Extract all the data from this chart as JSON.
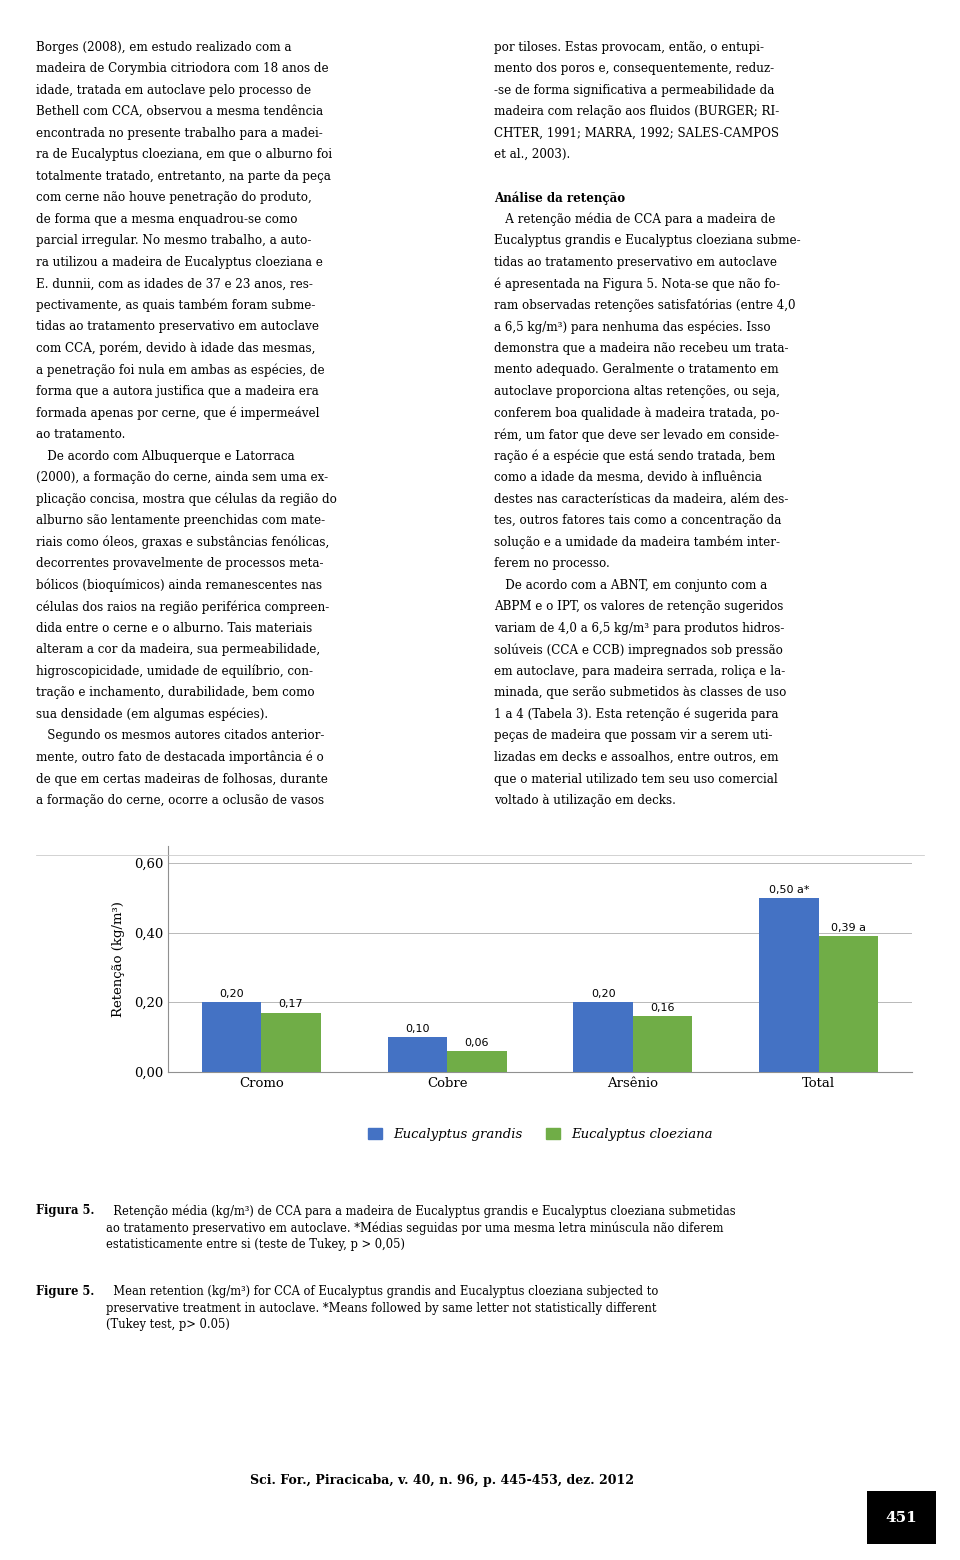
{
  "categories": [
    "Cromo",
    "Cobre",
    "Arsênio",
    "Total"
  ],
  "series": [
    {
      "name": "Eucalyptus grandis",
      "values": [
        0.2,
        0.1,
        0.2,
        0.5
      ],
      "labels": [
        "0,20",
        "0,10",
        "0,20",
        "0,50 a*"
      ],
      "color": "#4472C4"
    },
    {
      "name": "Eucalyptus cloeziana",
      "values": [
        0.17,
        0.06,
        0.16,
        0.39
      ],
      "labels": [
        "0,17",
        "0,06",
        "0,16",
        "0,39 a"
      ],
      "color": "#70AD47"
    }
  ],
  "ylabel": "Retenção (kg/m³)",
  "ylim": [
    0.0,
    0.65
  ],
  "yticks": [
    0.0,
    0.2,
    0.4,
    0.6
  ],
  "ytick_labels": [
    "0,00",
    "0,20",
    "0,40",
    "0,60"
  ],
  "bar_width": 0.32,
  "background_color": "#ffffff",
  "grid_color": "#b8b8b8",
  "col1_lines": [
    "Borges (2008), em estudo realizado com a",
    "madeira de Corymbia citriodora com 18 anos de",
    "idade, tratada em autoclave pelo processo de",
    "Bethell com CCA, observou a mesma tendência",
    "encontrada no presente trabalho para a madei-",
    "ra de Eucalyptus cloeziana, em que o alburno foi",
    "totalmente tratado, entretanto, na parte da peça",
    "com cerne não houve penetração do produto,",
    "de forma que a mesma enquadrou-se como",
    "parcial irregular. No mesmo trabalho, a auto-",
    "ra utilizou a madeira de Eucalyptus cloeziana e",
    "E. dunnii, com as idades de 37 e 23 anos, res-",
    "pectivamente, as quais também foram subme-",
    "tidas ao tratamento preservativo em autoclave",
    "com CCA, porém, devido à idade das mesmas,",
    "a penetração foi nula em ambas as espécies, de",
    "forma que a autora justifica que a madeira era",
    "formada apenas por cerne, que é impermeável",
    "ao tratamento.",
    "   De acordo com Albuquerque e Latorraca",
    "(2000), a formação do cerne, ainda sem uma ex-",
    "plicação concisa, mostra que células da região do",
    "alburno são lentamente preenchidas com mate-",
    "riais como óleos, graxas e substâncias fenólicas,",
    "decorrentes provavelmente de processos meta-",
    "bólicos (bioquímicos) ainda remanescentes nas",
    "células dos raios na região periférica compreen-",
    "dida entre o cerne e o alburno. Tais materiais",
    "alteram a cor da madeira, sua permeabilidade,",
    "higroscopicidade, umidade de equilíbrio, con-",
    "tração e inchamento, durabilidade, bem como",
    "sua densidade (em algumas espécies).",
    "   Segundo os mesmos autores citados anterior-",
    "mente, outro fato de destacada importância é o",
    "de que em certas madeiras de folhosas, durante",
    "a formação do cerne, ocorre a oclusão de vasos"
  ],
  "col2_lines": [
    "por tiloses. Estas provocam, então, o entupi-",
    "mento dos poros e, consequentemente, reduz-",
    "-se de forma significativa a permeabilidade da",
    "madeira com relação aos fluidos (BURGER; RI-",
    "CHTER, 1991; MARRA, 1992; SALES-CAMPOS",
    "et al., 2003).",
    "",
    "Análise da retenção",
    "   A retenção média de CCA para a madeira de",
    "Eucalyptus grandis e Eucalyptus cloeziana subme-",
    "tidas ao tratamento preservativo em autoclave",
    "é apresentada na Figura 5. Nota-se que não fo-",
    "ram observadas retenções satisfatórias (entre 4,0",
    "a 6,5 kg/m³) para nenhuma das espécies. Isso",
    "demonstra que a madeira não recebeu um trata-",
    "mento adequado. Geralmente o tratamento em",
    "autoclave proporciona altas retenções, ou seja,",
    "conferem boa qualidade à madeira tratada, po-",
    "rém, um fator que deve ser levado em conside-",
    "ração é a espécie que está sendo tratada, bem",
    "como a idade da mesma, devido à influência",
    "destes nas características da madeira, além des-",
    "tes, outros fatores tais como a concentração da",
    "solução e a umidade da madeira também inter-",
    "ferem no processo.",
    "   De acordo com a ABNT, em conjunto com a",
    "ABPM e o IPT, os valores de retenção sugeridos",
    "variam de 4,0 a 6,5 kg/m³ para produtos hidros-",
    "solúveis (CCA e CCB) impregnados sob pressão",
    "em autoclave, para madeira serrada, roliça e la-",
    "minada, que serão submetidos às classes de uso",
    "1 a 4 (Tabela 3). Esta retenção é sugerida para",
    "peças de madeira que possam vir a serem uti-",
    "lizadas em decks e assoalhos, entre outros, em",
    "que o material utilizado tem seu uso comercial",
    "voltado à utilização em decks."
  ],
  "fig5_pt_label": "Figura 5.",
  "fig5_pt_text": "  Retenção média (kg/m³) de CCA para a madeira de Eucalyptus grandis e Eucalyptus cloeziana submetidas\nao tratamento preservativo em autoclave. *Médias seguidas por uma mesma letra minúscula não diferem\nestatisticamente entre si (teste de Tukey, p > 0,05)",
  "fig5_en_label": "Figure 5.",
  "fig5_en_text": "  Mean retention (kg/m³) for CCA of Eucalyptus grandis and Eucalyptus cloeziana subjected to\npreservative treatment in autoclave. *Means followed by same letter not statistically different\n(Tukey test, p> 0.05)",
  "footer": "Sci. For., Piracicaba, v. 40, n. 96, p. 445-453, dez. 2012",
  "page_number": "451"
}
